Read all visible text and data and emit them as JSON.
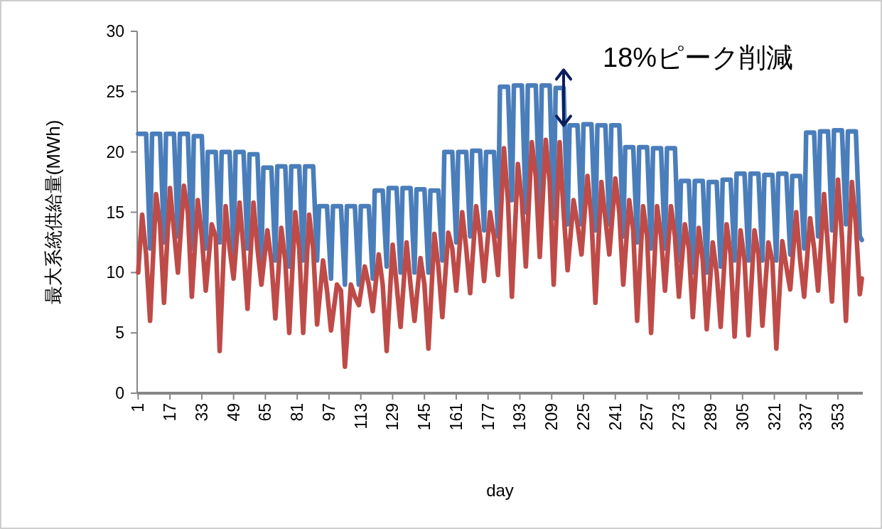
{
  "chart_data": {
    "type": "line",
    "xlabel": "day",
    "ylabel": "最大系統供給量(MWh)",
    "xlim": [
      0.5,
      365.5
    ],
    "xticks": [
      1,
      17,
      33,
      49,
      65,
      81,
      97,
      113,
      129,
      145,
      161,
      177,
      193,
      209,
      225,
      241,
      257,
      273,
      289,
      305,
      321,
      337,
      353
    ],
    "ylim": [
      0,
      30
    ],
    "yticks": [
      0,
      5,
      10,
      15,
      20,
      25,
      30
    ],
    "grid": false,
    "line_style": "solid",
    "annotations": [
      {
        "text": "18%ピーク削減",
        "x": 215,
        "y": 22.2
      }
    ],
    "series": [
      {
        "color": "#4a7ebb",
        "x": [
          1,
          5,
          7,
          8,
          12,
          14,
          15,
          19,
          21,
          22,
          26,
          28,
          29,
          33,
          35,
          36,
          40,
          42,
          43,
          47,
          49,
          50,
          54,
          56,
          57,
          61,
          63,
          64,
          68,
          70,
          71,
          75,
          77,
          78,
          82,
          84,
          85,
          89,
          91,
          92,
          96,
          98,
          99,
          103,
          105,
          106,
          110,
          112,
          113,
          117,
          119,
          120,
          124,
          126,
          127,
          131,
          133,
          134,
          138,
          140,
          141,
          145,
          147,
          148,
          152,
          154,
          155,
          159,
          161,
          162,
          166,
          168,
          169,
          173,
          175,
          176,
          180,
          182,
          183,
          187,
          189,
          190,
          194,
          196,
          197,
          201,
          203,
          204,
          208,
          210,
          211,
          215,
          217,
          218,
          222,
          224,
          225,
          229,
          231,
          232,
          236,
          238,
          239,
          243,
          245,
          246,
          250,
          252,
          253,
          257,
          259,
          260,
          264,
          266,
          267,
          271,
          273,
          274,
          278,
          280,
          281,
          285,
          287,
          288,
          292,
          294,
          295,
          299,
          301,
          302,
          306,
          308,
          309,
          313,
          315,
          316,
          320,
          322,
          323,
          327,
          329,
          330,
          334,
          336,
          337,
          341,
          343,
          344,
          348,
          350,
          351,
          355,
          357,
          358,
          362,
          364,
          365
        ],
        "values": [
          21.5,
          21.5,
          12,
          21.5,
          21.5,
          12.5,
          21.5,
          21.5,
          13,
          21.5,
          21.5,
          12,
          21.3,
          21.3,
          12,
          20,
          20,
          12.5,
          20,
          20,
          11.5,
          20,
          20,
          12,
          19.8,
          19.8,
          11,
          18.7,
          18.7,
          11,
          18.8,
          18.8,
          10.5,
          18.8,
          18.8,
          11,
          18.8,
          18.8,
          11,
          15.5,
          15.5,
          9.5,
          15.5,
          15.5,
          9,
          15.5,
          15.5,
          9,
          15.5,
          15.5,
          9.5,
          16.8,
          16.8,
          10.5,
          17,
          17,
          10,
          17,
          17,
          10,
          16.9,
          16.9,
          10,
          16.8,
          16.8,
          11,
          20,
          20,
          12.5,
          20,
          20,
          13,
          20.1,
          20.1,
          13.5,
          20,
          20,
          13,
          25.4,
          25.4,
          16,
          25.5,
          25.5,
          15,
          25.5,
          25.5,
          15,
          25.5,
          25.5,
          14.5,
          25.3,
          25.3,
          14,
          22.2,
          22.2,
          14,
          22.3,
          22.3,
          13.5,
          22.2,
          22.2,
          14,
          22.2,
          22.2,
          13,
          20.4,
          20.4,
          12.5,
          20.4,
          20.4,
          12,
          20.3,
          20.3,
          12,
          20.3,
          20.3,
          11,
          17.6,
          17.6,
          10,
          17.6,
          17.6,
          10,
          17.5,
          17.5,
          10.5,
          17.7,
          17.7,
          11,
          18.2,
          18.2,
          11,
          18.2,
          18.2,
          11,
          18.1,
          18.1,
          11,
          18.2,
          18.2,
          11.5,
          18,
          18,
          12,
          21.6,
          21.6,
          13,
          21.7,
          21.7,
          13.5,
          21.8,
          21.8,
          14,
          21.7,
          21.7,
          13,
          12.7
        ]
      },
      {
        "color": "#be4b48",
        "x": [
          1,
          3,
          5,
          7,
          10,
          12,
          14,
          17,
          19,
          21,
          24,
          26,
          28,
          31,
          33,
          35,
          38,
          40,
          42,
          45,
          47,
          49,
          52,
          54,
          56,
          59,
          61,
          63,
          66,
          68,
          70,
          73,
          75,
          77,
          80,
          82,
          84,
          87,
          89,
          91,
          94,
          96,
          98,
          101,
          103,
          105,
          108,
          110,
          112,
          115,
          117,
          119,
          122,
          124,
          126,
          129,
          131,
          133,
          136,
          138,
          140,
          143,
          145,
          147,
          150,
          152,
          154,
          157,
          159,
          161,
          164,
          166,
          168,
          171,
          173,
          175,
          178,
          180,
          182,
          185,
          187,
          189,
          192,
          194,
          196,
          199,
          201,
          203,
          206,
          208,
          210,
          213,
          215,
          217,
          220,
          222,
          224,
          227,
          229,
          231,
          234,
          236,
          238,
          241,
          243,
          245,
          248,
          250,
          252,
          255,
          257,
          259,
          262,
          264,
          266,
          269,
          271,
          273,
          276,
          278,
          280,
          283,
          285,
          287,
          290,
          292,
          294,
          297,
          299,
          301,
          304,
          306,
          308,
          311,
          313,
          315,
          318,
          320,
          322,
          325,
          327,
          329,
          332,
          334,
          336,
          339,
          341,
          343,
          346,
          348,
          350,
          353,
          355,
          357,
          360,
          362,
          364,
          365
        ],
        "values": [
          10,
          14.8,
          11.5,
          6,
          16.5,
          14,
          7.5,
          17,
          13.5,
          10,
          17.2,
          15,
          8,
          16,
          13,
          8.5,
          14,
          13,
          3.5,
          15.5,
          12,
          9.5,
          15.8,
          12,
          7,
          15.8,
          12,
          9,
          13.5,
          11,
          6.2,
          13.7,
          11,
          5,
          15,
          12,
          5,
          14.8,
          12,
          5.7,
          11,
          8.5,
          5.2,
          9,
          8.5,
          2.2,
          9,
          8,
          7.3,
          10.5,
          9,
          6.8,
          11.5,
          9,
          3.5,
          12.3,
          9,
          5.5,
          12.5,
          9,
          6,
          11.2,
          9,
          3.7,
          13.2,
          10.5,
          6.3,
          13.3,
          12,
          8.5,
          15,
          12,
          8.3,
          15.5,
          13,
          9.3,
          15,
          13,
          9.8,
          20.3,
          16,
          8,
          19,
          16,
          10.5,
          20.8,
          18,
          11.3,
          21,
          17.5,
          9,
          20.8,
          15,
          10.2,
          16,
          14,
          11.5,
          18,
          14.5,
          7.5,
          17.5,
          14.5,
          11.5,
          17.8,
          15,
          9,
          16,
          13.5,
          6,
          15.5,
          13,
          5,
          15.5,
          13,
          8.5,
          15.5,
          13,
          8,
          14,
          12,
          6.3,
          13.7,
          11,
          5.3,
          12.5,
          10,
          5.5,
          14,
          11.5,
          4.7,
          13.5,
          11,
          4.8,
          13.5,
          11.5,
          5.6,
          12.5,
          11,
          3.7,
          12.6,
          10.5,
          8.6,
          15,
          11,
          8,
          14.5,
          12,
          8.5,
          16.5,
          12,
          7.6,
          17.7,
          13,
          6,
          17.5,
          14,
          8.2,
          9.5
        ]
      }
    ]
  }
}
